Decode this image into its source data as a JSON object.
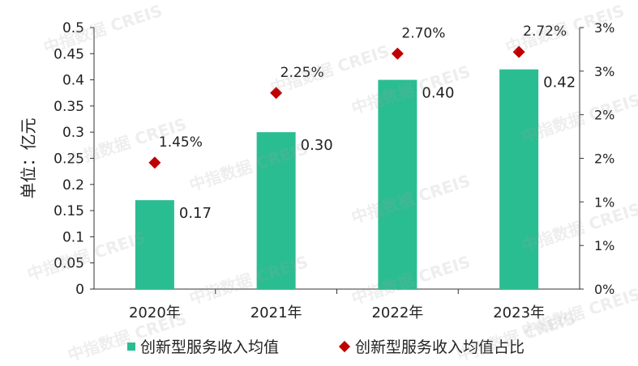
{
  "chart_data": {
    "type": "bar",
    "categories": [
      "2020年",
      "2021年",
      "2022年",
      "2023年"
    ],
    "series": [
      {
        "name": "创新型服务收入均值",
        "type": "bar",
        "axis": "left",
        "values": [
          0.17,
          0.3,
          0.4,
          0.42
        ],
        "labels": [
          "0.17",
          "0.30",
          "0.40",
          "0.42"
        ],
        "color": "#2bbd92"
      },
      {
        "name": "创新型服务收入均值占比",
        "type": "scatter",
        "axis": "right",
        "values": [
          1.45,
          2.25,
          2.7,
          2.72
        ],
        "labels": [
          "1.45%",
          "2.25%",
          "2.70%",
          "2.72%"
        ],
        "color": "#c00000"
      }
    ],
    "ylabel": "单位：亿元",
    "ylim": [
      0,
      0.5
    ],
    "yticks": [
      "0",
      "0.05",
      "0.1",
      "0.15",
      "0.2",
      "0.25",
      "0.3",
      "0.35",
      "0.4",
      "0.45",
      "0.5"
    ],
    "y2lim": [
      0,
      3
    ],
    "y2ticks": [
      "0%",
      "1%",
      "1%",
      "2%",
      "2%",
      "3%",
      "3%"
    ],
    "legend_position": "bottom",
    "grid": false
  },
  "watermark": "中指数据 CREIS"
}
